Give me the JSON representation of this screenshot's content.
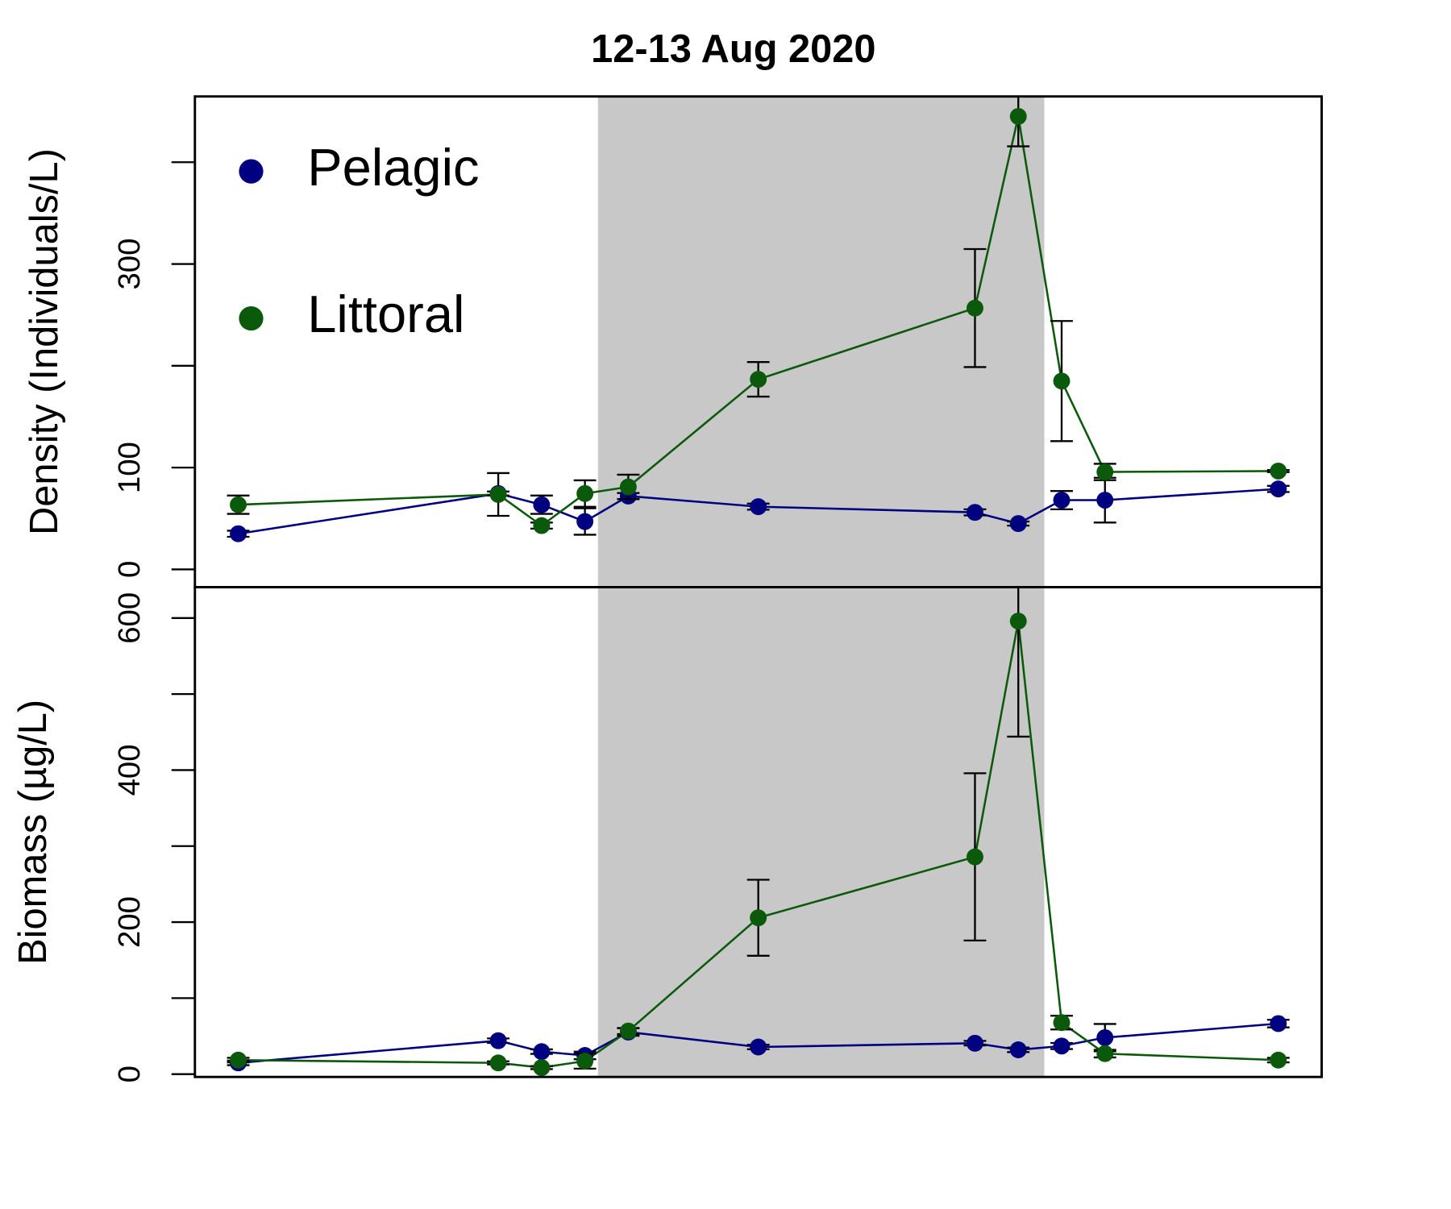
{
  "chart_data": [
    {
      "type": "line",
      "title": "12-13 Aug 2020",
      "ylabel": "Density (Individuals/L)",
      "x": [
        0,
        6,
        7,
        8,
        9,
        12,
        17,
        18,
        19,
        20,
        24
      ],
      "xlim": [
        -1,
        25
      ],
      "shade": [
        8.3,
        18.6
      ],
      "ylim": [
        -17.5,
        464.6
      ],
      "yticks": [
        0,
        100,
        {
          "value": 200,
          "label": null
        },
        300,
        {
          "value": 400,
          "label": null
        }
      ],
      "legend": "top-left",
      "series": [
        {
          "name": "Pelagic",
          "color": "#000080",
          "values": [
            35,
            74.5,
            63.5,
            47,
            72,
            61.6,
            56,
            45,
            68,
            68,
            79
          ],
          "errors": [
            3,
            2,
            9,
            13,
            3,
            3,
            3,
            2,
            9,
            22,
            3
          ]
        },
        {
          "name": "Littoral",
          "color": "#0b5a0b",
          "values": [
            63.5,
            73.6,
            43,
            74.5,
            81,
            186.7,
            256.7,
            445,
            185,
            95.7,
            96.6
          ],
          "errors": [
            9,
            21,
            3,
            13,
            12,
            17,
            58,
            29.4,
            59,
            8,
            1
          ]
        }
      ]
    },
    {
      "type": "line",
      "ylabel": "Biomass (µg/L)",
      "x": [
        0,
        6,
        7,
        8,
        9,
        12,
        17,
        18,
        19,
        20,
        24
      ],
      "xlim": [
        -1,
        25
      ],
      "shade": [
        8.3,
        18.6
      ],
      "ylim": [
        -3.7,
        640.6
      ],
      "yticks": [
        0,
        {
          "value": 100,
          "label": null
        },
        200,
        {
          "value": 300,
          "label": null
        },
        400,
        {
          "value": 500,
          "label": null
        },
        600
      ],
      "series": [
        {
          "color": "#000080",
          "values": [
            14.8,
            44,
            29.6,
            24.6,
            55.4,
            35.7,
            40.7,
            32,
            37,
            48,
            66.5
          ],
          "errors": [
            3,
            3,
            3,
            5,
            5,
            3,
            3,
            3,
            4,
            18,
            5
          ]
        },
        {
          "color": "#0b5a0b",
          "values": [
            18.5,
            14.8,
            8.6,
            17.2,
            56.7,
            205.7,
            285.8,
            596,
            67.8,
            27,
            18.5
          ],
          "errors": [
            3,
            2,
            2,
            10,
            4,
            50,
            110,
            152,
            9,
            5,
            3
          ]
        }
      ]
    }
  ]
}
